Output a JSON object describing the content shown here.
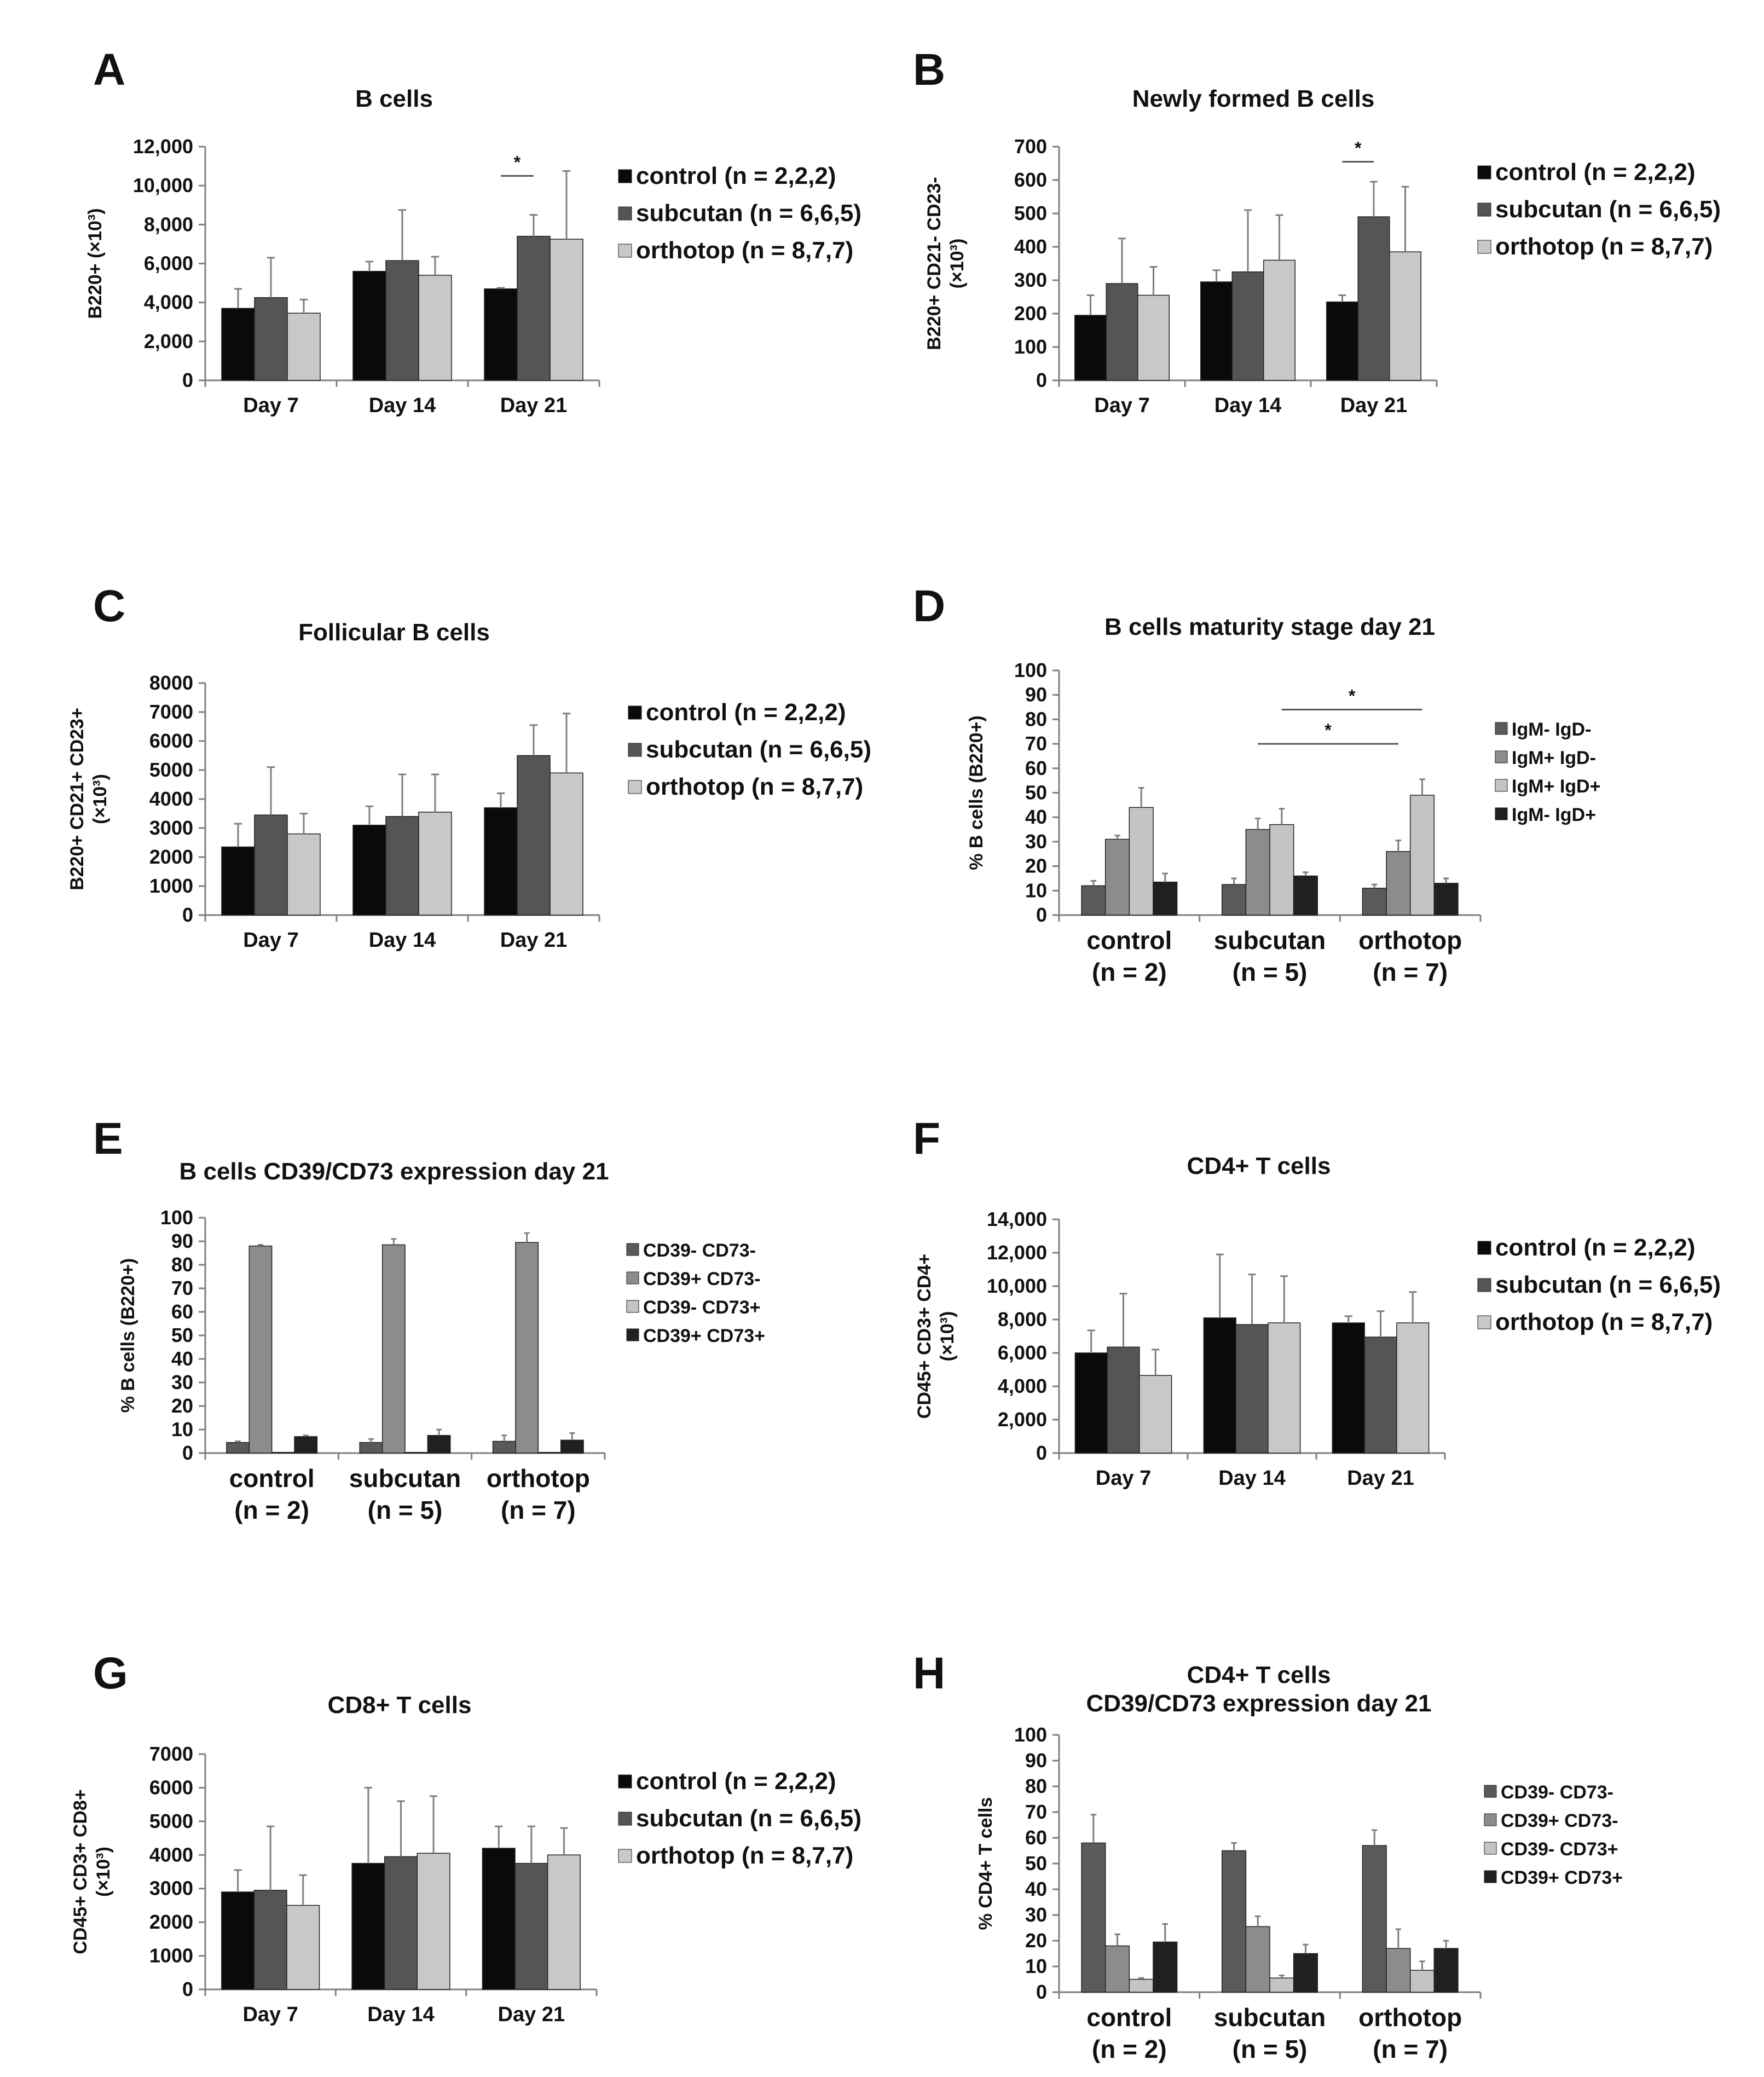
{
  "colors": {
    "control": "#0a0a0a",
    "subcutan": "#555555",
    "orthotop": "#c8c8c8",
    "cat1": "#5a5a5a",
    "cat2": "#8c8c8c",
    "cat3": "#c4c4c4",
    "cat4": "#202020",
    "axis": "#7f7f7f"
  },
  "chart_data": [
    {
      "id": "A",
      "letter": "A",
      "type": "bar",
      "title": [
        "B cells"
      ],
      "ylabel": [
        "B220+ (×10³)"
      ],
      "ylim": [
        0,
        12000
      ],
      "yticks": [
        0,
        2000,
        4000,
        6000,
        8000,
        10000,
        12000
      ],
      "ytick_labels": [
        "0",
        "2,000",
        "4,000",
        "6,000",
        "8,000",
        "10,000",
        "12,000"
      ],
      "categories": [
        "Day 7",
        "Day 14",
        "Day 21"
      ],
      "series": [
        {
          "name": "control (n = 2,2,2)",
          "color": "control",
          "values": [
            3700,
            5600,
            4700
          ],
          "errors": [
            1000,
            500,
            50
          ]
        },
        {
          "name": "subcutan (n = 6,6,5)",
          "color": "subcutan",
          "values": [
            4250,
            6150,
            7400
          ],
          "errors": [
            2050,
            2600,
            1100
          ]
        },
        {
          "name": "orthotop (n = 8,7,7)",
          "color": "orthotop",
          "values": [
            3450,
            5400,
            7250
          ],
          "errors": [
            700,
            950,
            3500
          ]
        }
      ],
      "significance": [
        {
          "from": [
            2,
            0
          ],
          "to": [
            2,
            1
          ],
          "label": "*",
          "y": 10500
        }
      ],
      "legend_style": "big"
    },
    {
      "id": "B",
      "letter": "B",
      "type": "bar",
      "title": [
        "Newly formed B cells"
      ],
      "ylabel": [
        "B220+ CD21- CD23-",
        "(×10³)"
      ],
      "ylim": [
        0,
        700
      ],
      "yticks": [
        0,
        100,
        200,
        300,
        400,
        500,
        600,
        700
      ],
      "ytick_labels": [
        "0",
        "100",
        "200",
        "300",
        "400",
        "500",
        "600",
        "700"
      ],
      "categories": [
        "Day 7",
        "Day 14",
        "Day 21"
      ],
      "series": [
        {
          "name": "control (n = 2,2,2)",
          "color": "control",
          "values": [
            195,
            295,
            235
          ],
          "errors": [
            60,
            35,
            20
          ]
        },
        {
          "name": "subcutan (n = 6,6,5)",
          "color": "subcutan",
          "values": [
            290,
            325,
            490
          ],
          "errors": [
            135,
            185,
            105
          ]
        },
        {
          "name": "orthotop (n = 8,7,7)",
          "color": "orthotop",
          "values": [
            255,
            360,
            385
          ],
          "errors": [
            85,
            135,
            195
          ]
        }
      ],
      "significance": [
        {
          "from": [
            2,
            0
          ],
          "to": [
            2,
            1
          ],
          "label": "*",
          "y": 655
        }
      ],
      "legend_style": "big"
    },
    {
      "id": "C",
      "letter": "C",
      "type": "bar",
      "title": [
        "Follicular B cells"
      ],
      "ylabel": [
        "B220+ CD21+ CD23+",
        "(×10³)"
      ],
      "ylim": [
        0,
        8000
      ],
      "yticks": [
        0,
        1000,
        2000,
        3000,
        4000,
        5000,
        6000,
        7000,
        8000
      ],
      "ytick_labels": [
        "0",
        "1000",
        "2000",
        "3000",
        "4000",
        "5000",
        "6000",
        "7000",
        "8000"
      ],
      "categories": [
        "Day 7",
        "Day 14",
        "Day 21"
      ],
      "series": [
        {
          "name": "control (n = 2,2,2)",
          "color": "control",
          "values": [
            2350,
            3100,
            3700
          ],
          "errors": [
            800,
            650,
            500
          ]
        },
        {
          "name": "subcutan (n = 6,6,5)",
          "color": "subcutan",
          "values": [
            3450,
            3400,
            5500
          ],
          "errors": [
            1650,
            1450,
            1050
          ]
        },
        {
          "name": "orthotop (n = 8,7,7)",
          "color": "orthotop",
          "values": [
            2800,
            3550,
            4900
          ],
          "errors": [
            700,
            1300,
            2050
          ]
        }
      ],
      "significance": [],
      "legend_style": "big"
    },
    {
      "id": "D",
      "letter": "D",
      "type": "bar",
      "title": [
        "B cells maturity stage day 21"
      ],
      "ylabel": [
        "% B cells (B220+)"
      ],
      "ylim": [
        0,
        100
      ],
      "yticks": [
        0,
        10,
        20,
        30,
        40,
        50,
        60,
        70,
        80,
        90,
        100
      ],
      "ytick_labels": [
        "0",
        "10",
        "20",
        "30",
        "40",
        "50",
        "60",
        "70",
        "80",
        "90",
        "100"
      ],
      "categories": [
        "control\n(n = 2)",
        "subcutan\n(n = 5)",
        "orthotop\n(n = 7)"
      ],
      "series": [
        {
          "name": "IgM- IgD-",
          "color": "cat1",
          "values": [
            12,
            12.5,
            11
          ],
          "errors": [
            2,
            2.5,
            1.5
          ]
        },
        {
          "name": "IgM+ IgD-",
          "color": "cat2",
          "values": [
            31,
            35,
            26
          ],
          "errors": [
            1.5,
            4.5,
            4.5
          ]
        },
        {
          "name": "IgM+ IgD+",
          "color": "cat3",
          "values": [
            44,
            37,
            49
          ],
          "errors": [
            8,
            6.5,
            6.5
          ]
        },
        {
          "name": "IgM- IgD+",
          "color": "cat4",
          "values": [
            13.5,
            16,
            13
          ],
          "errors": [
            3.5,
            1.5,
            2
          ]
        }
      ],
      "significance": [
        {
          "from": [
            1,
            1
          ],
          "to": [
            2,
            1
          ],
          "label": "*",
          "y": 70
        },
        {
          "from": [
            1,
            2
          ],
          "to": [
            2,
            2
          ],
          "label": "*",
          "y": 84
        }
      ],
      "legend_style": "small"
    },
    {
      "id": "E",
      "letter": "E",
      "type": "bar",
      "title": [
        "B cells CD39/CD73 expression day 21"
      ],
      "ylabel": [
        "% B cells (B220+)"
      ],
      "ylim": [
        0,
        100
      ],
      "yticks": [
        0,
        10,
        20,
        30,
        40,
        50,
        60,
        70,
        80,
        90,
        100
      ],
      "ytick_labels": [
        "0",
        "10",
        "20",
        "30",
        "40",
        "50",
        "60",
        "70",
        "80",
        "90",
        "100"
      ],
      "categories": [
        "control\n(n = 2)",
        "subcutan\n(n = 5)",
        "orthotop\n(n = 7)"
      ],
      "series": [
        {
          "name": "CD39- CD73-",
          "color": "cat1",
          "values": [
            4.5,
            4.5,
            5
          ],
          "errors": [
            0.5,
            1.5,
            2.5
          ]
        },
        {
          "name": "CD39+ CD73-",
          "color": "cat2",
          "values": [
            88,
            88.5,
            89.5
          ],
          "errors": [
            0.5,
            2.5,
            4
          ]
        },
        {
          "name": "CD39- CD73+",
          "color": "cat3",
          "values": [
            0.3,
            0.3,
            0.3
          ],
          "errors": [
            0,
            0,
            0
          ]
        },
        {
          "name": "CD39+ CD73+",
          "color": "cat4",
          "values": [
            7,
            7.5,
            5.5
          ],
          "errors": [
            0.5,
            2.5,
            3
          ]
        }
      ],
      "significance": [],
      "legend_style": "small"
    },
    {
      "id": "F",
      "letter": "F",
      "type": "bar",
      "title": [
        "CD4+ T cells"
      ],
      "ylabel": [
        "CD45+ CD3+ CD4+",
        "(×10³)"
      ],
      "ylim": [
        0,
        14000
      ],
      "yticks": [
        0,
        2000,
        4000,
        6000,
        8000,
        10000,
        12000,
        14000
      ],
      "ytick_labels": [
        "0",
        "2,000",
        "4,000",
        "6,000",
        "8,000",
        "10,000",
        "12,000",
        "14,000"
      ],
      "categories": [
        "Day 7",
        "Day 14",
        "Day 21"
      ],
      "series": [
        {
          "name": "control (n = 2,2,2)",
          "color": "control",
          "values": [
            6000,
            8100,
            7800
          ],
          "errors": [
            1350,
            3800,
            400
          ]
        },
        {
          "name": "subcutan (n = 6,6,5)",
          "color": "subcutan",
          "values": [
            6350,
            7700,
            6950
          ],
          "errors": [
            3200,
            3000,
            1550
          ]
        },
        {
          "name": "orthotop (n = 8,7,7)",
          "color": "orthotop",
          "values": [
            4650,
            7800,
            7800
          ],
          "errors": [
            1550,
            2800,
            1850
          ]
        }
      ],
      "significance": [],
      "legend_style": "big"
    },
    {
      "id": "G",
      "letter": "G",
      "type": "bar",
      "title": [
        "CD8+ T cells"
      ],
      "ylabel": [
        "CD45+ CD3+ CD8+",
        "(×10³)"
      ],
      "ylim": [
        0,
        7000
      ],
      "yticks": [
        0,
        1000,
        2000,
        3000,
        4000,
        5000,
        6000,
        7000
      ],
      "ytick_labels": [
        "0",
        "1000",
        "2000",
        "3000",
        "4000",
        "5000",
        "6000",
        "7000"
      ],
      "categories": [
        "Day 7",
        "Day 14",
        "Day 21"
      ],
      "series": [
        {
          "name": "control (n = 2,2,2)",
          "color": "control",
          "values": [
            2900,
            3750,
            4200
          ],
          "errors": [
            650,
            2250,
            650
          ]
        },
        {
          "name": "subcutan (n = 6,6,5)",
          "color": "subcutan",
          "values": [
            2950,
            3950,
            3750
          ],
          "errors": [
            1900,
            1650,
            1100
          ]
        },
        {
          "name": "orthotop (n = 8,7,7)",
          "color": "orthotop",
          "values": [
            2500,
            4050,
            4000
          ],
          "errors": [
            900,
            1700,
            800
          ]
        }
      ],
      "significance": [],
      "legend_style": "big"
    },
    {
      "id": "H",
      "letter": "H",
      "type": "bar",
      "title": [
        "CD4+ T cells",
        "CD39/CD73 expression day 21"
      ],
      "ylabel": [
        "% CD4+ T cells"
      ],
      "ylim": [
        0,
        100
      ],
      "yticks": [
        0,
        10,
        20,
        30,
        40,
        50,
        60,
        70,
        80,
        90,
        100
      ],
      "ytick_labels": [
        "0",
        "10",
        "20",
        "30",
        "40",
        "50",
        "60",
        "70",
        "80",
        "90",
        "100"
      ],
      "categories": [
        "control\n(n = 2)",
        "subcutan\n(n = 5)",
        "orthotop\n(n = 7)"
      ],
      "series": [
        {
          "name": "CD39- CD73-",
          "color": "cat1",
          "values": [
            58,
            55,
            57
          ],
          "errors": [
            11,
            3,
            6
          ]
        },
        {
          "name": "CD39+ CD73-",
          "color": "cat2",
          "values": [
            18,
            25.5,
            17
          ],
          "errors": [
            4.5,
            4,
            7.5
          ]
        },
        {
          "name": "CD39- CD73+",
          "color": "cat3",
          "values": [
            5,
            5.5,
            8.5
          ],
          "errors": [
            0.5,
            1,
            3.5
          ]
        },
        {
          "name": "CD39+ CD73+",
          "color": "cat4",
          "values": [
            19.5,
            15,
            17
          ],
          "errors": [
            7,
            3.5,
            3
          ]
        }
      ],
      "significance": [],
      "legend_style": "small"
    }
  ]
}
